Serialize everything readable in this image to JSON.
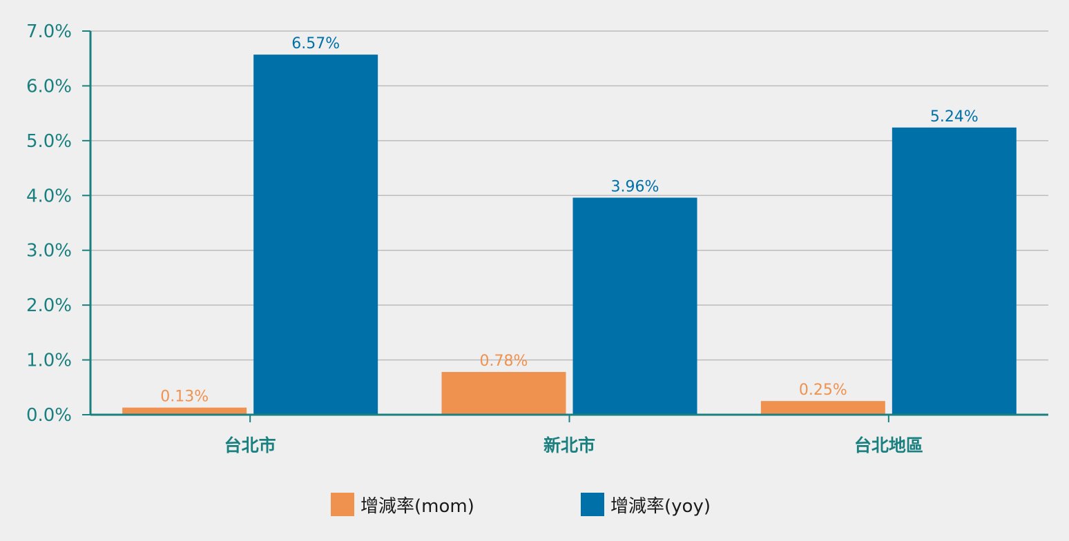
{
  "chart_data": {
    "type": "bar",
    "categories": [
      "台北市",
      "新北市",
      "台北地區"
    ],
    "series": [
      {
        "name": "增減率(mom)",
        "values": [
          0.13,
          0.78,
          0.25
        ],
        "color": "#f0924f",
        "labels": [
          "0.13%",
          "0.78%",
          "0.25%"
        ]
      },
      {
        "name": "增減率(yoy)",
        "values": [
          6.57,
          3.96,
          5.24
        ],
        "color": "#0070a8",
        "labels": [
          "6.57%",
          "3.96%",
          "5.24%"
        ]
      }
    ],
    "ylim": [
      0,
      7
    ],
    "yticks": [
      0,
      1,
      2,
      3,
      4,
      5,
      6,
      7
    ],
    "ytick_labels": [
      "0.0%",
      "1.0%",
      "2.0%",
      "3.0%",
      "4.0%",
      "5.0%",
      "6.0%",
      "7.0%"
    ],
    "grid": true,
    "legend_position": "bottom",
    "axis_color": "#1a7f7f",
    "grid_color": "#bcbcbc",
    "background": "#efefef"
  }
}
